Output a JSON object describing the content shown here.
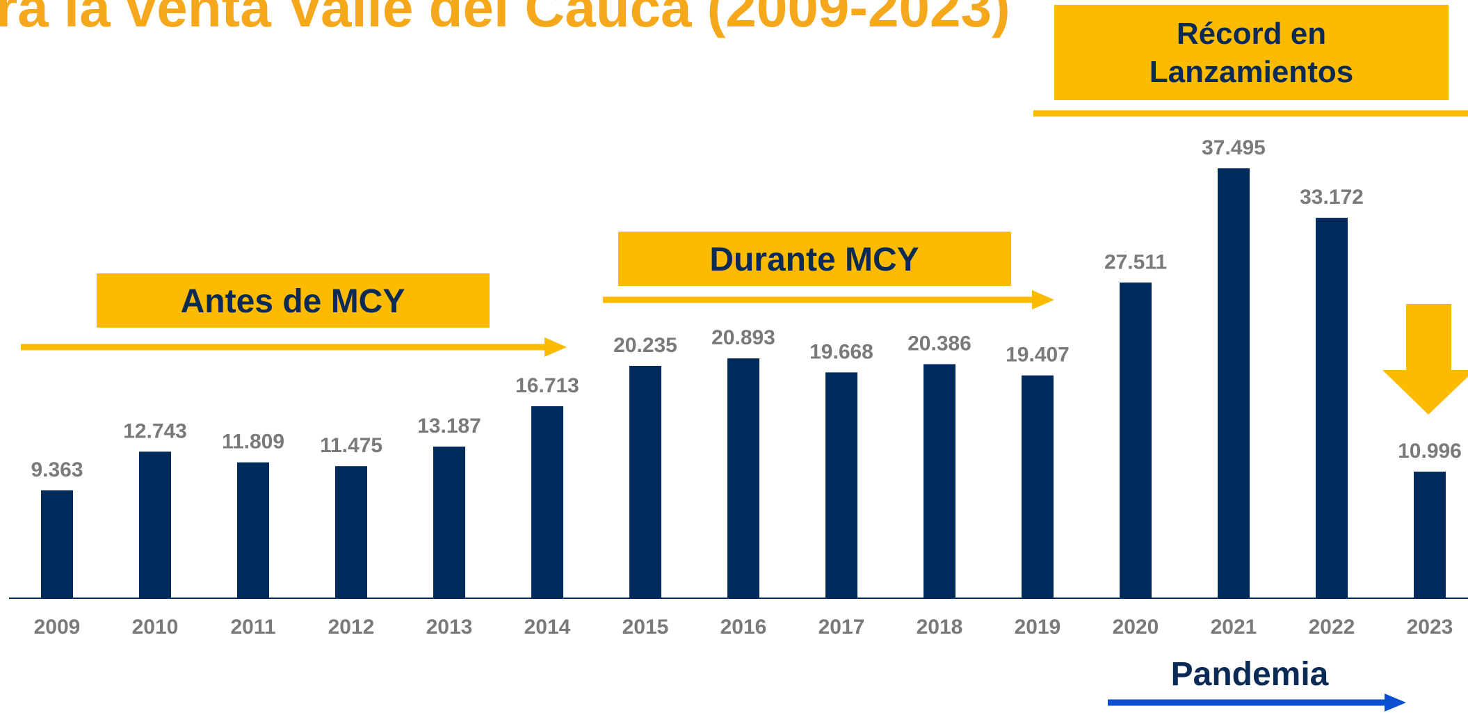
{
  "chart_data": {
    "type": "bar",
    "title": "ra la venta Valle del Cauca (2009-2023)",
    "categories": [
      "2009",
      "2010",
      "2011",
      "2012",
      "2013",
      "2014",
      "2015",
      "2016",
      "2017",
      "2018",
      "2019",
      "2020",
      "2021",
      "2022",
      "2023"
    ],
    "values": [
      9363,
      12743,
      11809,
      11475,
      13187,
      16713,
      20235,
      20893,
      19668,
      20386,
      19407,
      27511,
      37495,
      33172,
      10996
    ],
    "value_labels": [
      "9.363",
      "12.743",
      "11.809",
      "11.475",
      "13.187",
      "16.713",
      "20.235",
      "20.893",
      "19.668",
      "20.386",
      "19.407",
      "27.511",
      "37.495",
      "33.172",
      "10.996"
    ],
    "color": "#002a5c",
    "annotations": [
      "Antes de MCY",
      "Durante MCY",
      "Récord en Lanzamientos",
      "Pandemia"
    ]
  }
}
